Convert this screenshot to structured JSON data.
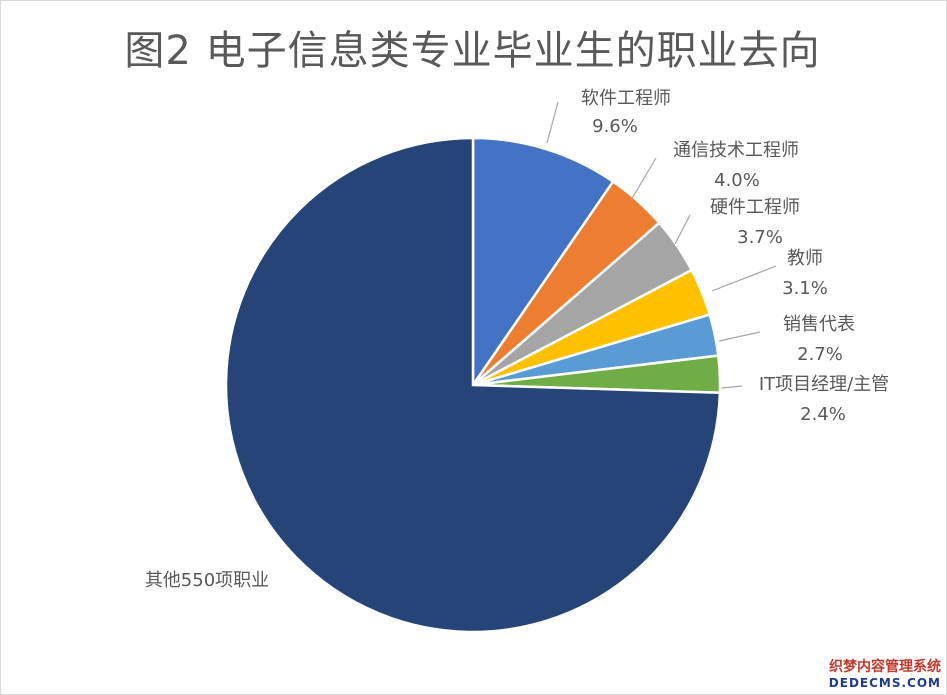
{
  "chart_data": {
    "type": "pie",
    "title": "图2 电子信息类专业毕业生的职业去向",
    "slices": [
      {
        "label": "软件工程师",
        "value": 9.6,
        "value_label": "9.6%",
        "color": "#4472c4"
      },
      {
        "label": "通信技术工程师",
        "value": 4.0,
        "value_label": "4.0%",
        "color": "#ed7d31"
      },
      {
        "label": "硬件工程师",
        "value": 3.7,
        "value_label": "3.7%",
        "color": "#a5a5a5"
      },
      {
        "label": "教师",
        "value": 3.1,
        "value_label": "3.1%",
        "color": "#ffc000"
      },
      {
        "label": "销售代表",
        "value": 2.7,
        "value_label": "2.7%",
        "color": "#5b9bd5"
      },
      {
        "label": "IT项目经理/主管",
        "value": 2.4,
        "value_label": "2.4%",
        "color": "#70ad47"
      },
      {
        "label": "其他550项职业",
        "value": 74.5,
        "value_label": "",
        "color": "#264478"
      }
    ],
    "start_angle_deg": 0,
    "direction": "clockwise",
    "legend": "none"
  },
  "watermark": {
    "line1": "织梦内容管理系统",
    "line2": "DEDECMS.COM"
  }
}
